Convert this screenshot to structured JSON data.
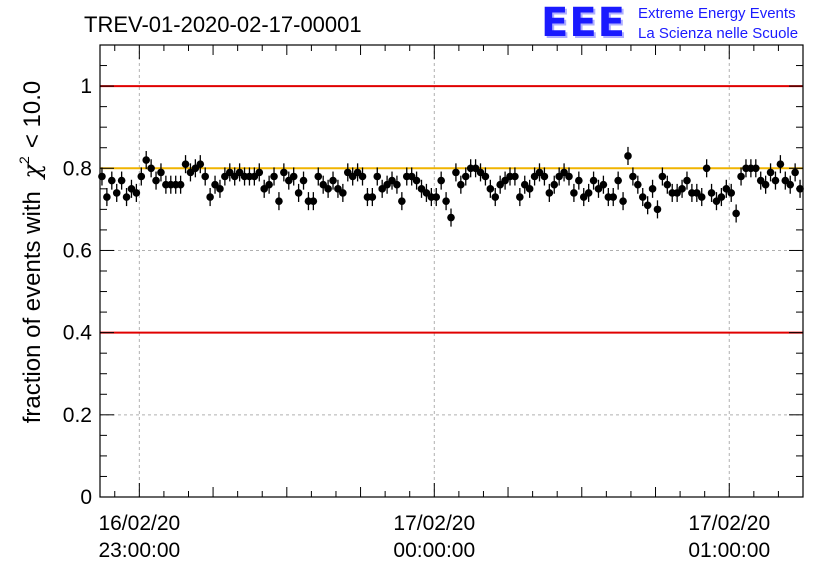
{
  "chart_data": {
    "type": "scatter",
    "title": "TREV-01-2020-02-17-00001",
    "ylabel": "fraction of events with",
    "ylabel_math": "χ",
    "ylabel_sup": "2",
    "ylabel_suffix": "< 10.0",
    "xlabel": "",
    "ylim": [
      0,
      1.1
    ],
    "yticks": [
      0,
      0.2,
      0.4,
      0.6,
      0.8,
      1
    ],
    "ytick_labels": [
      "0",
      "0.2",
      "0.4",
      "0.6",
      "0.8",
      "1"
    ],
    "xlim_minutes": [
      -8,
      135
    ],
    "x_major_ticks": [
      {
        "minute": 0,
        "date": "16/02/20",
        "time": "23:00:00"
      },
      {
        "minute": 60,
        "date": "17/02/20",
        "time": "00:00:00"
      },
      {
        "minute": 120,
        "date": "17/02/20",
        "time": "01:00:00"
      }
    ],
    "x_unit": "minutes after 16/02/20 23:00:00",
    "reference_lines": [
      {
        "y": 1.0,
        "color": "#e00000"
      },
      {
        "y": 0.4,
        "color": "#e00000"
      },
      {
        "y": 0.8,
        "color": "#f0b400"
      }
    ],
    "grid": true,
    "series": [
      {
        "marker_color": "#000000",
        "error": 0.022,
        "points": [
          [
            -7.6,
            0.78
          ],
          [
            -6.6,
            0.73
          ],
          [
            -5.6,
            0.77
          ],
          [
            -4.6,
            0.74
          ],
          [
            -3.6,
            0.77
          ],
          [
            -2.6,
            0.73
          ],
          [
            -1.6,
            0.75
          ],
          [
            -0.6,
            0.74
          ],
          [
            0.4,
            0.78
          ],
          [
            1.4,
            0.82
          ],
          [
            2.4,
            0.8
          ],
          [
            3.4,
            0.77
          ],
          [
            4.4,
            0.79
          ],
          [
            5.4,
            0.76
          ],
          [
            6.4,
            0.76
          ],
          [
            7.4,
            0.76
          ],
          [
            8.4,
            0.76
          ],
          [
            9.4,
            0.81
          ],
          [
            10.4,
            0.79
          ],
          [
            11.4,
            0.8
          ],
          [
            12.4,
            0.81
          ],
          [
            13.4,
            0.78
          ],
          [
            14.4,
            0.73
          ],
          [
            15.4,
            0.76
          ],
          [
            16.4,
            0.75
          ],
          [
            17.4,
            0.78
          ],
          [
            18.4,
            0.79
          ],
          [
            19.4,
            0.78
          ],
          [
            20.4,
            0.79
          ],
          [
            21.4,
            0.78
          ],
          [
            22.4,
            0.78
          ],
          [
            23.4,
            0.78
          ],
          [
            24.4,
            0.79
          ],
          [
            25.4,
            0.75
          ],
          [
            26.4,
            0.76
          ],
          [
            27.4,
            0.78
          ],
          [
            28.4,
            0.72
          ],
          [
            29.4,
            0.79
          ],
          [
            30.4,
            0.77
          ],
          [
            31.4,
            0.78
          ],
          [
            32.4,
            0.74
          ],
          [
            33.4,
            0.77
          ],
          [
            34.4,
            0.72
          ],
          [
            35.4,
            0.72
          ],
          [
            36.4,
            0.78
          ],
          [
            37.4,
            0.76
          ],
          [
            38.4,
            0.75
          ],
          [
            39.4,
            0.77
          ],
          [
            40.4,
            0.75
          ],
          [
            41.4,
            0.74
          ],
          [
            42.4,
            0.79
          ],
          [
            43.4,
            0.78
          ],
          [
            44.4,
            0.79
          ],
          [
            45.4,
            0.78
          ],
          [
            46.4,
            0.73
          ],
          [
            47.4,
            0.73
          ],
          [
            48.4,
            0.78
          ],
          [
            49.4,
            0.75
          ],
          [
            50.4,
            0.76
          ],
          [
            51.4,
            0.77
          ],
          [
            52.4,
            0.76
          ],
          [
            53.4,
            0.72
          ],
          [
            54.4,
            0.78
          ],
          [
            55.4,
            0.78
          ],
          [
            56.4,
            0.77
          ],
          [
            57.4,
            0.75
          ],
          [
            58.4,
            0.74
          ],
          [
            59.4,
            0.73
          ],
          [
            60.4,
            0.73
          ],
          [
            61.4,
            0.77
          ],
          [
            62.4,
            0.72
          ],
          [
            63.4,
            0.68
          ],
          [
            64.4,
            0.79
          ],
          [
            65.4,
            0.76
          ],
          [
            66.4,
            0.78
          ],
          [
            67.4,
            0.8
          ],
          [
            68.4,
            0.8
          ],
          [
            69.4,
            0.79
          ],
          [
            70.4,
            0.78
          ],
          [
            71.4,
            0.75
          ],
          [
            72.4,
            0.73
          ],
          [
            73.4,
            0.76
          ],
          [
            74.4,
            0.77
          ],
          [
            75.4,
            0.78
          ],
          [
            76.4,
            0.78
          ],
          [
            77.4,
            0.73
          ],
          [
            78.4,
            0.76
          ],
          [
            79.4,
            0.75
          ],
          [
            80.4,
            0.78
          ],
          [
            81.4,
            0.79
          ],
          [
            82.4,
            0.78
          ],
          [
            83.4,
            0.74
          ],
          [
            84.4,
            0.76
          ],
          [
            85.4,
            0.78
          ],
          [
            86.4,
            0.79
          ],
          [
            87.4,
            0.78
          ],
          [
            88.4,
            0.74
          ],
          [
            89.4,
            0.77
          ],
          [
            90.4,
            0.73
          ],
          [
            91.4,
            0.74
          ],
          [
            92.4,
            0.77
          ],
          [
            93.4,
            0.75
          ],
          [
            94.4,
            0.76
          ],
          [
            95.4,
            0.73
          ],
          [
            96.4,
            0.73
          ],
          [
            97.4,
            0.77
          ],
          [
            98.4,
            0.72
          ],
          [
            99.4,
            0.83
          ],
          [
            100.4,
            0.78
          ],
          [
            101.4,
            0.76
          ],
          [
            102.4,
            0.73
          ],
          [
            103.4,
            0.71
          ],
          [
            104.4,
            0.75
          ],
          [
            105.4,
            0.7
          ],
          [
            106.4,
            0.78
          ],
          [
            107.4,
            0.76
          ],
          [
            108.4,
            0.74
          ],
          [
            109.4,
            0.74
          ],
          [
            110.4,
            0.75
          ],
          [
            111.4,
            0.77
          ],
          [
            112.4,
            0.74
          ],
          [
            113.4,
            0.74
          ],
          [
            114.4,
            0.73
          ],
          [
            115.4,
            0.8
          ],
          [
            116.4,
            0.74
          ],
          [
            117.4,
            0.72
          ],
          [
            118.4,
            0.73
          ],
          [
            119.4,
            0.75
          ],
          [
            120.4,
            0.74
          ],
          [
            121.4,
            0.69
          ],
          [
            122.4,
            0.78
          ],
          [
            123.4,
            0.8
          ],
          [
            124.4,
            0.8
          ],
          [
            125.4,
            0.8
          ],
          [
            126.4,
            0.77
          ],
          [
            127.4,
            0.76
          ],
          [
            128.4,
            0.79
          ],
          [
            129.4,
            0.77
          ],
          [
            130.4,
            0.81
          ],
          [
            131.4,
            0.77
          ],
          [
            132.4,
            0.76
          ],
          [
            133.4,
            0.79
          ],
          [
            134.4,
            0.75
          ]
        ]
      }
    ]
  },
  "logo": {
    "mark": "EEE",
    "line1": "Extreme Energy Events",
    "line2": "La Scienza nelle Scuole",
    "color": "#1a1aff"
  }
}
